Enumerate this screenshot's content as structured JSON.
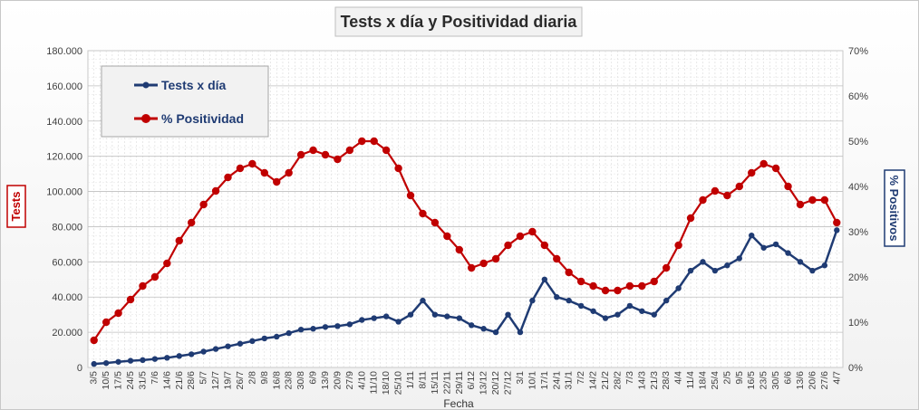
{
  "chart_data": {
    "type": "line",
    "title": "Tests x día y Positividad diaria",
    "xlabel": "Fecha",
    "ylabel": "Tests",
    "y2label": "% Positivos",
    "ylim": [
      0,
      180000
    ],
    "y2lim": [
      0,
      0.7
    ],
    "yticks": [
      "0",
      "20.000",
      "40.000",
      "60.000",
      "80.000",
      "100.000",
      "120.000",
      "140.000",
      "160.000",
      "180.000"
    ],
    "y2ticks": [
      "0%",
      "10%",
      "20%",
      "30%",
      "40%",
      "50%",
      "60%",
      "70%"
    ],
    "grid": true,
    "legend_position": "top-left",
    "colors": {
      "tests": "#1f3b73",
      "positivity": "#c00000",
      "positivity_label_border": "#c00000",
      "tests_label_border": "#1f3b73"
    },
    "categories": [
      "3/5",
      "10/5",
      "17/5",
      "24/5",
      "31/5",
      "7/6",
      "14/6",
      "21/6",
      "28/6",
      "5/7",
      "12/7",
      "19/7",
      "26/7",
      "2/8",
      "9/8",
      "16/8",
      "23/8",
      "30/8",
      "6/9",
      "13/9",
      "20/9",
      "27/9",
      "4/10",
      "11/10",
      "18/10",
      "25/10",
      "1/11",
      "8/11",
      "15/11",
      "22/11",
      "29/11",
      "6/12",
      "13/12",
      "20/12",
      "27/12",
      "3/1",
      "10/1",
      "17/1",
      "24/1",
      "31/1",
      "7/2",
      "14/2",
      "21/2",
      "28/2",
      "7/3",
      "14/3",
      "21/3",
      "28/3",
      "4/4",
      "11/4",
      "18/4",
      "25/4",
      "2/5",
      "9/5",
      "16/5",
      "23/5",
      "30/5",
      "6/6",
      "13/6",
      "20/6",
      "27/6",
      "4/7"
    ],
    "series": [
      {
        "name": "Tests x día",
        "axis": "left",
        "values": [
          2000,
          2500,
          3200,
          3800,
          4200,
          4800,
          5500,
          6500,
          7500,
          9000,
          10500,
          12000,
          13500,
          15000,
          16500,
          17500,
          19500,
          21500,
          22000,
          23000,
          23500,
          24500,
          27000,
          28000,
          29000,
          26000,
          30000,
          38000,
          30000,
          29000,
          28000,
          24000,
          22000,
          20000,
          30000,
          20000,
          38000,
          50000,
          40000,
          38000,
          35000,
          32000,
          28000,
          30000,
          35000,
          32000,
          30000,
          38000,
          45000,
          55000,
          60000,
          55000,
          58000,
          62000,
          75000,
          68000,
          70000,
          65000,
          60000,
          55000,
          58000,
          78000
        ]
      },
      {
        "name": "% Positividad",
        "axis": "right",
        "values": [
          0.06,
          0.1,
          0.12,
          0.15,
          0.18,
          0.2,
          0.23,
          0.28,
          0.32,
          0.36,
          0.39,
          0.42,
          0.44,
          0.45,
          0.43,
          0.41,
          0.43,
          0.47,
          0.48,
          0.47,
          0.46,
          0.48,
          0.5,
          0.5,
          0.48,
          0.44,
          0.38,
          0.34,
          0.32,
          0.29,
          0.26,
          0.22,
          0.23,
          0.24,
          0.27,
          0.29,
          0.3,
          0.27,
          0.24,
          0.21,
          0.19,
          0.18,
          0.17,
          0.17,
          0.18,
          0.18,
          0.19,
          0.22,
          0.27,
          0.33,
          0.37,
          0.39,
          0.38,
          0.4,
          0.43,
          0.45,
          0.44,
          0.4,
          0.36,
          0.37,
          0.37,
          0.32
        ]
      }
    ]
  }
}
